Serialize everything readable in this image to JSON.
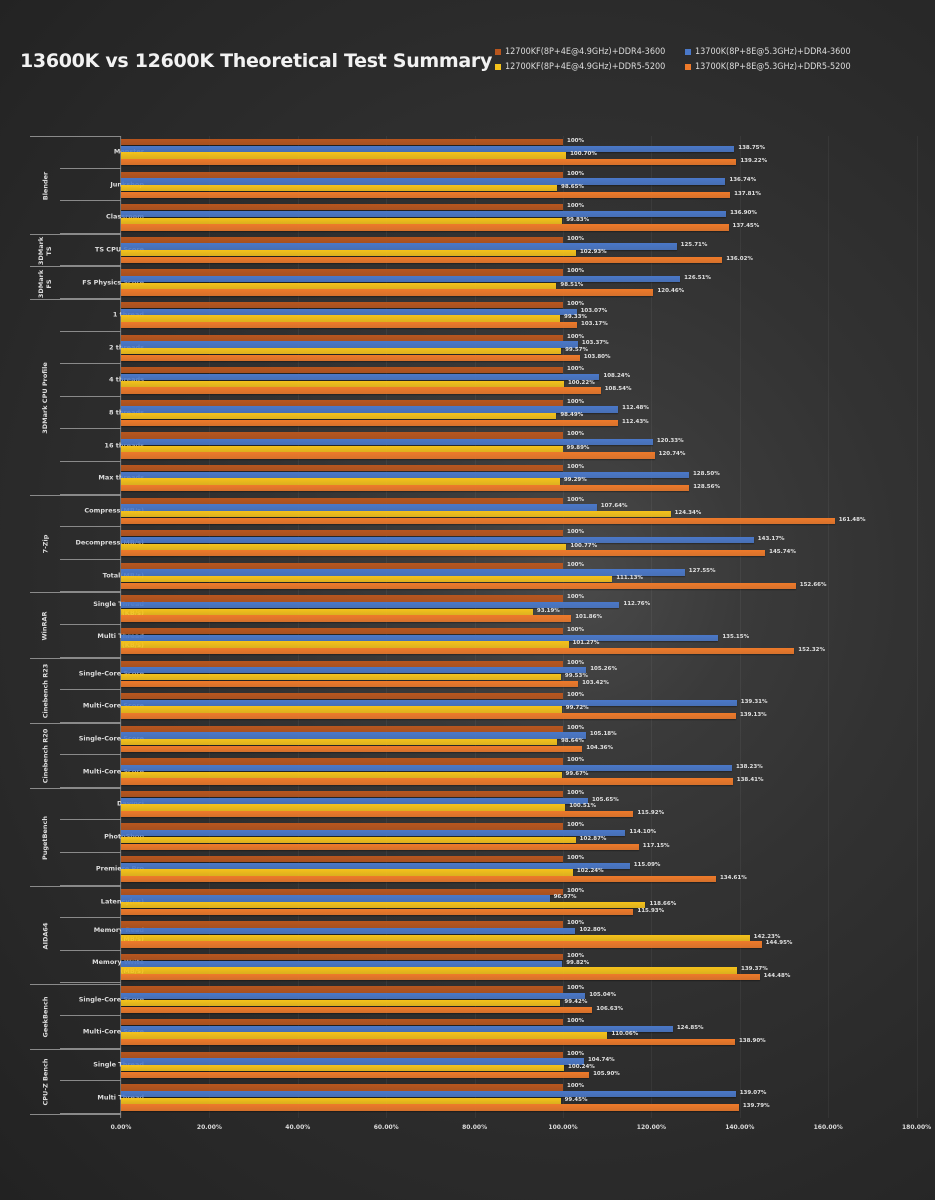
{
  "title": "13600K vs 12600K Theoretical Test Summary",
  "legend": [
    {
      "label": "12700KF(8P+4E@4.9GHz)+DDR4-3600",
      "color": "#b8561e"
    },
    {
      "label": "13700K(8P+8E@5.3GHz)+DDR4-3600",
      "color": "#4a78c8"
    },
    {
      "label": "12700KF(8P+4E@4.9GHz)+DDR5-5200",
      "color": "#f5c21b"
    },
    {
      "label": "13700K(8P+8E@5.3GHz)+DDR5-5200",
      "color": "#ee7a2a"
    }
  ],
  "chart_data": {
    "type": "bar",
    "orientation": "horizontal",
    "title": "13600K vs 12600K Theoretical Test Summary",
    "xlabel": "",
    "ylabel": "",
    "xlim": [
      0,
      180
    ],
    "x_ticks": [
      "0.00%",
      "20.00%",
      "40.00%",
      "60.00%",
      "80.00%",
      "100.00%",
      "120.00%",
      "140.00%",
      "160.00%",
      "180.00%"
    ],
    "legend_position": "top-right",
    "grid": true,
    "groups": [
      {
        "name": "Blender",
        "categories": [
          "Monster",
          "Junkshop",
          "Classroom"
        ]
      },
      {
        "name": "3DMark TS",
        "categories": [
          "TS CPU Score"
        ]
      },
      {
        "name": "3DMark FS",
        "categories": [
          "FS Physics Score"
        ]
      },
      {
        "name": "3DMark CPU Profile",
        "categories": [
          "1 thread",
          "2 threads",
          "4 threads",
          "8 threads",
          "16 threads",
          "Max threads"
        ]
      },
      {
        "name": "7-Zip",
        "categories": [
          "Compress(MB/s)",
          "Decompress(MB/s)",
          "Total(MB/s)"
        ]
      },
      {
        "name": "WinRAR",
        "categories": [
          "Single Thread (KB/s)",
          "Multi Thread (KB/s)"
        ]
      },
      {
        "name": "Cinebench R23",
        "categories": [
          "Single-Core Score",
          "Multi-Core Score"
        ]
      },
      {
        "name": "Cinebench R20",
        "categories": [
          "Single-Core Score",
          "Multi-Core Score"
        ]
      },
      {
        "name": "PugetBench",
        "categories": [
          "Davinci",
          "PhotoShop",
          "Premiere Pro"
        ]
      },
      {
        "name": "AIDA64",
        "categories": [
          "Latency(ns)",
          "Memory Read (MB/s)",
          "Memory Write (MB/s)"
        ]
      },
      {
        "name": "GeekBench",
        "categories": [
          "Single-Core Score",
          "Multi-Core Score"
        ]
      },
      {
        "name": "CPU-Z Bench",
        "categories": [
          "Single Thread",
          "Multi Thread"
        ]
      }
    ],
    "categories": [
      "Monster",
      "Junkshop",
      "Classroom",
      "TS CPU Score",
      "FS Physics Score",
      "1 thread",
      "2 threads",
      "4 threads",
      "8 threads",
      "16 threads",
      "Max threads",
      "Compress(MB/s)",
      "Decompress(MB/s)",
      "Total(MB/s)",
      "Single Thread (KB/s)",
      "Multi Thread (KB/s)",
      "Single-Core Score",
      "Multi-Core Score",
      "Single-Core Score",
      "Multi-Core Score",
      "Davinci",
      "PhotoShop",
      "Premiere Pro",
      "Latency(ns)",
      "Memory Read (MB/s)",
      "Memory Write (MB/s)",
      "Single-Core Score",
      "Multi-Core Score",
      "Single Thread",
      "Multi Thread"
    ],
    "series": [
      {
        "name": "12700KF(8P+4E@4.9GHz)+DDR4-3600",
        "values": [
          100,
          100,
          100,
          100,
          100,
          100,
          100,
          100,
          100,
          100,
          100,
          100,
          100,
          100,
          100,
          100,
          100,
          100,
          100,
          100,
          100,
          100,
          100,
          100,
          100,
          100,
          100,
          100,
          100,
          100
        ]
      },
      {
        "name": "13700K(8P+8E@5.3GHz)+DDR4-3600",
        "values": [
          138.75,
          136.74,
          136.9,
          125.71,
          126.51,
          103.07,
          103.37,
          108.24,
          112.48,
          120.33,
          128.5,
          107.64,
          143.17,
          127.55,
          112.76,
          135.15,
          105.26,
          139.31,
          105.18,
          138.23,
          105.65,
          114.1,
          115.09,
          96.97,
          102.8,
          99.82,
          105.04,
          124.85,
          104.74,
          139.07
        ]
      },
      {
        "name": "12700KF(8P+4E@4.9GHz)+DDR5-5200",
        "values": [
          100.7,
          98.65,
          99.83,
          102.93,
          98.51,
          99.33,
          99.57,
          100.22,
          98.49,
          99.89,
          99.29,
          124.34,
          100.77,
          111.13,
          93.19,
          101.27,
          99.53,
          99.72,
          98.64,
          99.67,
          100.51,
          102.87,
          102.24,
          118.66,
          142.23,
          139.37,
          99.42,
          110.06,
          100.24,
          99.45
        ]
      },
      {
        "name": "13700K(8P+8E@5.3GHz)+DDR5-5200",
        "values": [
          139.22,
          137.81,
          137.45,
          136.02,
          120.46,
          103.17,
          103.8,
          108.54,
          112.43,
          120.74,
          128.56,
          161.48,
          145.74,
          152.66,
          101.86,
          152.32,
          103.42,
          139.13,
          104.36,
          138.41,
          115.92,
          117.15,
          134.61,
          115.93,
          144.95,
          144.48,
          106.63,
          138.9,
          105.9,
          139.79
        ]
      }
    ]
  },
  "rows": [
    {
      "label": "Monster",
      "v": [
        "100%",
        "138.75%",
        "100.70%",
        "139.22%"
      ],
      "w": [
        100,
        138.75,
        100.7,
        139.22
      ]
    },
    {
      "label": "Junkshop",
      "v": [
        "100%",
        "136.74%",
        "98.65%",
        "137.81%"
      ],
      "w": [
        100,
        136.74,
        98.65,
        137.81
      ]
    },
    {
      "label": "Classroom",
      "v": [
        "100%",
        "136.90%",
        "99.83%",
        "137.45%"
      ],
      "w": [
        100,
        136.9,
        99.83,
        137.45
      ]
    },
    {
      "label": "TS CPU Score",
      "v": [
        "100%",
        "125.71%",
        "102.93%",
        "136.02%"
      ],
      "w": [
        100,
        125.71,
        102.93,
        136.02
      ]
    },
    {
      "label": "FS Physics Score",
      "v": [
        "100%",
        "126.51%",
        "98.51%",
        "120.46%"
      ],
      "w": [
        100,
        126.51,
        98.51,
        120.46
      ]
    },
    {
      "label": "1 thread",
      "v": [
        "100%",
        "103.07%",
        "99.33%",
        "103.17%"
      ],
      "w": [
        100,
        103.07,
        99.33,
        103.17
      ]
    },
    {
      "label": "2 threads",
      "v": [
        "100%",
        "103.37%",
        "99.57%",
        "103.80%"
      ],
      "w": [
        100,
        103.37,
        99.57,
        103.8
      ]
    },
    {
      "label": "4 threads",
      "v": [
        "100%",
        "108.24%",
        "100.22%",
        "108.54%"
      ],
      "w": [
        100,
        108.24,
        100.22,
        108.54
      ]
    },
    {
      "label": "8 threads",
      "v": [
        "100%",
        "112.48%",
        "98.49%",
        "112.43%"
      ],
      "w": [
        100,
        112.48,
        98.49,
        112.43
      ]
    },
    {
      "label": "16 threads",
      "v": [
        "100%",
        "120.33%",
        "99.89%",
        "120.74%"
      ],
      "w": [
        100,
        120.33,
        99.89,
        120.74
      ]
    },
    {
      "label": "Max threads",
      "v": [
        "100%",
        "128.50%",
        "99.29%",
        "128.56%"
      ],
      "w": [
        100,
        128.5,
        99.29,
        128.56
      ]
    },
    {
      "label": "Compress(MB/s)",
      "v": [
        "100%",
        "107.64%",
        "124.34%",
        "161.48%"
      ],
      "w": [
        100,
        107.64,
        124.34,
        161.48
      ]
    },
    {
      "label": "Decompress(MB/s)",
      "v": [
        "100%",
        "143.17%",
        "100.77%",
        "145.74%"
      ],
      "w": [
        100,
        143.17,
        100.77,
        145.74
      ]
    },
    {
      "label": "Total(MB/s)",
      "v": [
        "100%",
        "127.55%",
        "111.13%",
        "152.66%"
      ],
      "w": [
        100,
        127.55,
        111.13,
        152.66
      ]
    },
    {
      "label": "Single Thread\n(KB/s)",
      "v": [
        "100%",
        "112.76%",
        "93.19%",
        "101.86%"
      ],
      "w": [
        100,
        112.76,
        93.19,
        101.86
      ]
    },
    {
      "label": "Multi Thread\n(KB/s)",
      "v": [
        "100%",
        "135.15%",
        "101.27%",
        "152.32%"
      ],
      "w": [
        100,
        135.15,
        101.27,
        152.32
      ]
    },
    {
      "label": "Single-Core Score",
      "v": [
        "100%",
        "105.26%",
        "99.53%",
        "103.42%"
      ],
      "w": [
        100,
        105.26,
        99.53,
        103.42
      ]
    },
    {
      "label": "Multi-Core Score",
      "v": [
        "100%",
        "139.31%",
        "99.72%",
        "139.13%"
      ],
      "w": [
        100,
        139.31,
        99.72,
        139.13
      ]
    },
    {
      "label": "Single-Core Score",
      "v": [
        "100%",
        "105.18%",
        "98.64%",
        "104.36%"
      ],
      "w": [
        100,
        105.18,
        98.64,
        104.36
      ]
    },
    {
      "label": "Multi-Core Score",
      "v": [
        "100%",
        "138.23%",
        "99.67%",
        "138.41%"
      ],
      "w": [
        100,
        138.23,
        99.67,
        138.41
      ]
    },
    {
      "label": "Davinci",
      "v": [
        "100%",
        "105.65%",
        "100.51%",
        "115.92%"
      ],
      "w": [
        100,
        105.65,
        100.51,
        115.92
      ]
    },
    {
      "label": "PhotoShop",
      "v": [
        "100%",
        "114.10%",
        "102.87%",
        "117.15%"
      ],
      "w": [
        100,
        114.1,
        102.87,
        117.15
      ]
    },
    {
      "label": "Premiere Pro",
      "v": [
        "100%",
        "115.09%",
        "102.24%",
        "134.61%"
      ],
      "w": [
        100,
        115.09,
        102.24,
        134.61
      ]
    },
    {
      "label": "Latency(ns)",
      "v": [
        "100%",
        "96.97%",
        "118.66%",
        "115.93%"
      ],
      "w": [
        100,
        96.97,
        118.66,
        115.93
      ]
    },
    {
      "label": "Memory Read\n(MB/s)",
      "v": [
        "100%",
        "102.80%",
        "142.23%",
        "144.95%"
      ],
      "w": [
        100,
        102.8,
        142.23,
        144.95
      ]
    },
    {
      "label": "Memory Write\n(MB/s)",
      "v": [
        "100%",
        "99.82%",
        "139.37%",
        "144.48%"
      ],
      "w": [
        100,
        99.82,
        139.37,
        144.48
      ]
    },
    {
      "label": "Single-Core Score",
      "v": [
        "100%",
        "105.04%",
        "99.42%",
        "106.63%"
      ],
      "w": [
        100,
        105.04,
        99.42,
        106.63
      ]
    },
    {
      "label": "Multi-Core Score",
      "v": [
        "100%",
        "124.85%",
        "110.06%",
        "138.90%"
      ],
      "w": [
        100,
        124.85,
        110.06,
        138.9
      ]
    },
    {
      "label": "Single Thread",
      "v": [
        "100%",
        "104.74%",
        "100.24%",
        "105.90%"
      ],
      "w": [
        100,
        104.74,
        100.24,
        105.9
      ]
    },
    {
      "label": "Multi Thread",
      "v": [
        "100%",
        "139.07%",
        "99.45%",
        "139.79%"
      ],
      "w": [
        100,
        139.07,
        99.45,
        139.79
      ]
    }
  ],
  "group_spans": [
    {
      "name": "Blender",
      "start": 0,
      "count": 3
    },
    {
      "name": "3DMark\nTS",
      "start": 3,
      "count": 1
    },
    {
      "name": "3DMark\nFS",
      "start": 4,
      "count": 1
    },
    {
      "name": "3DMark CPU Profile",
      "start": 5,
      "count": 6
    },
    {
      "name": "7-Zip",
      "start": 11,
      "count": 3
    },
    {
      "name": "WinRAR",
      "start": 14,
      "count": 2
    },
    {
      "name": "Cinebench R23",
      "start": 16,
      "count": 2
    },
    {
      "name": "Cinebench R20",
      "start": 18,
      "count": 2
    },
    {
      "name": "PugetBench",
      "start": 20,
      "count": 3
    },
    {
      "name": "AIDA64",
      "start": 23,
      "count": 3
    },
    {
      "name": "GeekBench",
      "start": 26,
      "count": 2
    },
    {
      "name": "CPU-Z Bench",
      "start": 28,
      "count": 2
    }
  ],
  "colors": [
    "#b8561e",
    "#4a78c8",
    "#f5c21b",
    "#ee7a2a"
  ]
}
